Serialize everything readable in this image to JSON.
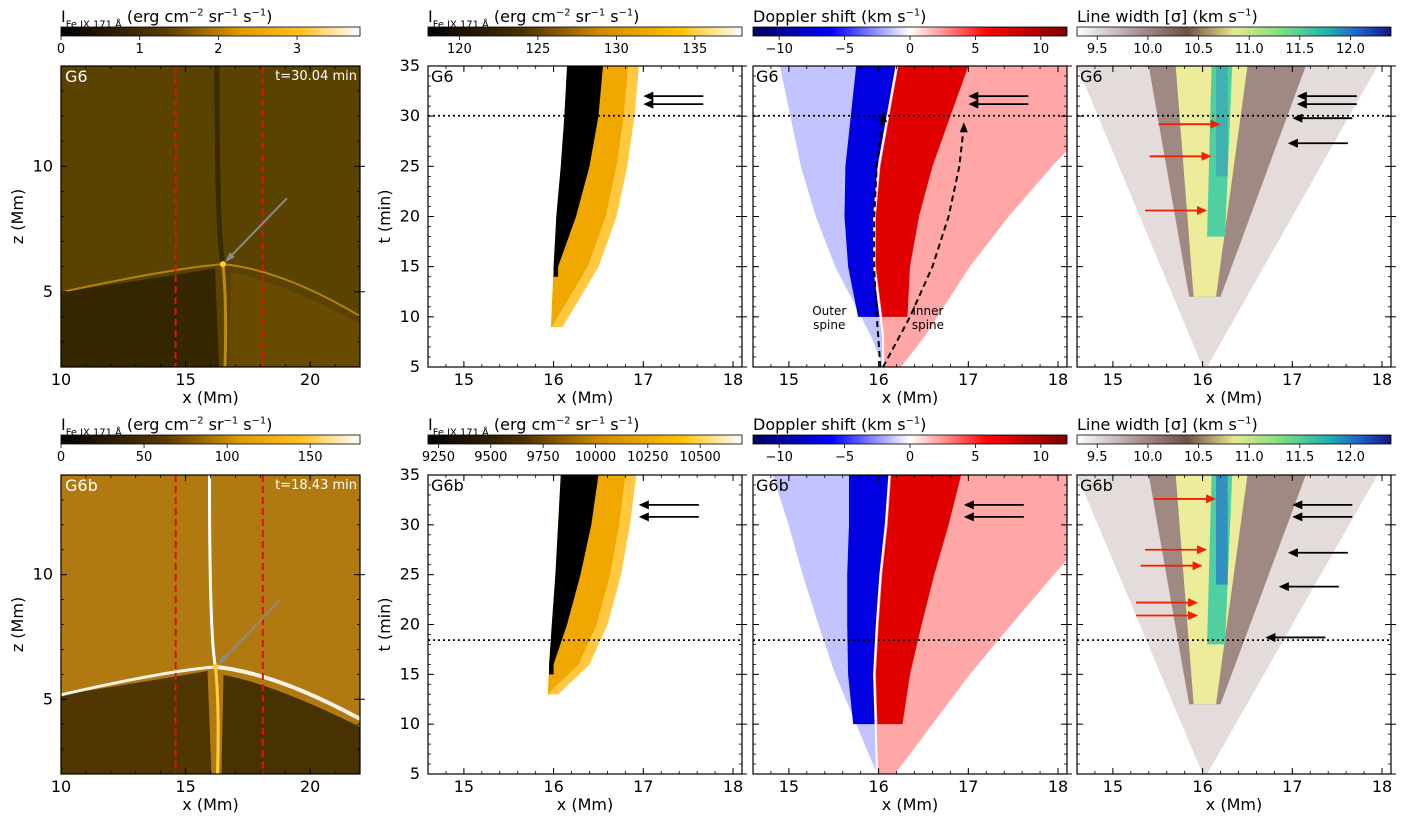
{
  "figure": {
    "rows": [
      {
        "sim_label": "G6",
        "time_label": "t=30.04 min",
        "t_current": 30.04,
        "panels": {
          "intensity_map": {
            "colorbar_label": "I<sub>Fe IX 171 Å</sub> (erg cm<sup>−2</sup> sr<sup>−1</sup> s<sup>−1</sup>)",
            "colorbar_ticks": [
              "0",
              "1",
              "2",
              "3"
            ],
            "colorbar_range": [
              0,
              3.8
            ]
          },
          "intensity_td": {
            "colorbar_label": "I<sub>Fe IX 171 Å</sub> (erg cm<sup>−2</sup> sr<sup>−1</sup> s<sup>−1</sup>)",
            "colorbar_ticks": [
              "120",
              "125",
              "130",
              "135"
            ],
            "colorbar_range": [
              118,
              138
            ]
          },
          "doppler_td": {
            "colorbar_label": "Doppler shift (km s<sup>−1</sup>)",
            "colorbar_ticks": [
              "−10",
              "−5",
              "0",
              "5",
              "10"
            ],
            "colorbar_range": [
              -12,
              12
            ],
            "annotations": [
              "Outer spine",
              "Inner spine"
            ]
          },
          "width_td": {
            "colorbar_label": "Line width [σ] (km s<sup>−1</sup>)",
            "colorbar_ticks": [
              "9.5",
              "10.0",
              "10.5",
              "11.0",
              "11.5",
              "12.0"
            ],
            "colorbar_range": [
              9.3,
              12.4
            ]
          }
        }
      },
      {
        "sim_label": "G6b",
        "time_label": "t=18.43 min",
        "t_current": 18.43,
        "panels": {
          "intensity_map": {
            "colorbar_label": "I<sub>Fe IX 171 Å</sub> (erg cm<sup>−2</sup> sr<sup>−1</sup> s<sup>−1</sup>)",
            "colorbar_ticks": [
              "0",
              "50",
              "100",
              "150"
            ],
            "colorbar_range": [
              0,
              180
            ]
          },
          "intensity_td": {
            "colorbar_label": "I<sub>Fe IX 171 Å</sub> (erg cm<sup>−2</sup> sr<sup>−1</sup> s<sup>−1</sup>)",
            "colorbar_ticks": [
              "9250",
              "9500",
              "9750",
              "10000",
              "10250",
              "10500"
            ],
            "colorbar_range": [
              9200,
              10700
            ]
          },
          "doppler_td": {
            "colorbar_label": "Doppler shift (km s<sup>−1</sup>)",
            "colorbar_ticks": [
              "−10",
              "−5",
              "0",
              "5",
              "10"
            ],
            "colorbar_range": [
              -12,
              12
            ],
            "annotations": []
          },
          "width_td": {
            "colorbar_label": "Line width [σ] (km s<sup>−1</sup>)",
            "colorbar_ticks": [
              "9.5",
              "10.0",
              "10.5",
              "11.0",
              "11.5",
              "12.0"
            ],
            "colorbar_range": [
              9.3,
              12.4
            ]
          }
        }
      }
    ],
    "map_axes": {
      "xlabel": "x (Mm)",
      "ylabel": "z (Mm)",
      "xlim": [
        10,
        22
      ],
      "ylim": [
        2,
        14
      ],
      "xticks": [
        "10",
        "15",
        "20"
      ],
      "yticks": [
        "5",
        "10"
      ],
      "slit_x": [
        14.6,
        18.1
      ]
    },
    "td_axes": {
      "xlabel": "x (Mm)",
      "ylabel": "t (min)",
      "xlim": [
        14.6,
        18.1
      ],
      "ylim": [
        5,
        35
      ],
      "xticks": [
        "15",
        "16",
        "17",
        "18"
      ],
      "yticks": [
        "5",
        "10",
        "15",
        "20",
        "25",
        "30",
        "35"
      ]
    }
  },
  "colors": {
    "slit": "#e01010",
    "red_arrow": "#ee2200",
    "pointer_arrow": "#8a8a8a",
    "map_background": "#5a4300",
    "map_bright": "#ffcc33"
  },
  "chart_data": [
    {
      "type": "heatmap",
      "title": "G6",
      "subtitle": "t=30.04 min",
      "quantity": "Fe IX 171 Å intensity map",
      "xlabel": "x (Mm)",
      "ylabel": "z (Mm)",
      "xlim": [
        10,
        22
      ],
      "ylim": [
        2,
        14
      ],
      "colorbar": {
        "range": [
          0,
          3.8
        ],
        "ticks": [
          0,
          1,
          2,
          3
        ]
      },
      "null_point": [
        16.5,
        6.1
      ],
      "slit_x": [
        14.6,
        18.1
      ]
    },
    {
      "type": "heatmap",
      "title": "G6",
      "quantity": "Fe IX 171 Å intensity time-distance",
      "xlabel": "x (Mm)",
      "ylabel": "t (min)",
      "xlim": [
        14.6,
        18.1
      ],
      "ylim": [
        5,
        35
      ],
      "colorbar": {
        "range": [
          118,
          138
        ],
        "ticks": [
          120,
          125,
          130,
          135
        ]
      },
      "dark_strand_edges": {
        "t": [
          15,
          20,
          25,
          30,
          35
        ],
        "left": [
          16.0,
          16.03,
          16.08,
          16.12,
          16.15
        ],
        "right": [
          16.05,
          16.25,
          16.4,
          16.5,
          16.55
        ]
      },
      "bright_edge": {
        "t": [
          9,
          15,
          20,
          25,
          30,
          35
        ],
        "x": [
          16.1,
          16.5,
          16.7,
          16.82,
          16.9,
          16.95
        ]
      },
      "black_arrows": [
        {
          "x": 17.0,
          "t": 32.0
        },
        {
          "x": 17.0,
          "t": 31.2
        }
      ],
      "t_marker": 30.04
    },
    {
      "type": "heatmap",
      "title": "G6",
      "quantity": "Doppler shift time-distance",
      "xlabel": "x (Mm)",
      "ylabel": "t (min)",
      "xlim": [
        14.6,
        18.1
      ],
      "ylim": [
        5,
        35
      ],
      "colorbar": {
        "range": [
          -12,
          12
        ],
        "ticks": [
          -10,
          -5,
          0,
          5,
          10
        ]
      },
      "blue_red_boundary": {
        "t": [
          8,
          15,
          20,
          25,
          30,
          35
        ],
        "x": [
          16.05,
          15.95,
          15.95,
          16.0,
          16.1,
          16.2
        ]
      },
      "outer_spine": {
        "t": [
          5,
          10,
          15,
          20,
          25,
          30
        ],
        "x": [
          16.02,
          15.98,
          15.95,
          15.95,
          15.98,
          16.05
        ]
      },
      "inner_spine": {
        "t": [
          5,
          10,
          15,
          20,
          25,
          29
        ],
        "x": [
          16.05,
          16.35,
          16.6,
          16.78,
          16.9,
          16.95
        ]
      },
      "black_arrows": [
        {
          "x": 17.0,
          "t": 32.0
        },
        {
          "x": 17.0,
          "t": 31.2
        }
      ],
      "t_marker": 30.04
    },
    {
      "type": "heatmap",
      "title": "G6",
      "quantity": "Line width time-distance",
      "xlabel": "x (Mm)",
      "ylabel": "t (min)",
      "xlim": [
        14.6,
        18.1
      ],
      "ylim": [
        5,
        35
      ],
      "colorbar": {
        "range": [
          9.3,
          12.4
        ],
        "ticks": [
          9.5,
          10.0,
          10.5,
          11.0,
          11.5,
          12.0
        ]
      },
      "red_arrows": [
        {
          "x": 16.2,
          "t": 29.2
        },
        {
          "x": 16.1,
          "t": 26.0
        },
        {
          "x": 16.05,
          "t": 20.6
        }
      ],
      "black_arrows": [
        {
          "x": 17.05,
          "t": 32.0
        },
        {
          "x": 17.05,
          "t": 31.2
        },
        {
          "x": 17.0,
          "t": 29.8
        },
        {
          "x": 16.95,
          "t": 27.3
        }
      ],
      "t_marker": 30.04
    },
    {
      "type": "heatmap",
      "title": "G6b",
      "subtitle": "t=18.43 min",
      "quantity": "Fe IX 171 Å intensity map",
      "xlabel": "x (Mm)",
      "ylabel": "z (Mm)",
      "xlim": [
        10,
        22
      ],
      "ylim": [
        2,
        14
      ],
      "colorbar": {
        "range": [
          0,
          180
        ],
        "ticks": [
          0,
          50,
          100,
          150
        ]
      },
      "null_point": [
        16.2,
        6.3
      ],
      "slit_x": [
        14.6,
        18.1
      ]
    },
    {
      "type": "heatmap",
      "title": "G6b",
      "quantity": "Fe IX 171 Å intensity time-distance",
      "xlabel": "x (Mm)",
      "ylabel": "t (min)",
      "xlim": [
        14.6,
        18.1
      ],
      "ylim": [
        5,
        35
      ],
      "colorbar": {
        "range": [
          9200,
          10700
        ],
        "ticks": [
          9250,
          9500,
          9750,
          10000,
          10250,
          10500
        ]
      },
      "dark_strand_edges": {
        "t": [
          16,
          20,
          25,
          30,
          35
        ],
        "left": [
          15.95,
          15.98,
          16.02,
          16.05,
          16.08
        ],
        "right": [
          16.0,
          16.15,
          16.3,
          16.42,
          16.5
        ]
      },
      "bright_edge": {
        "t": [
          13,
          16,
          20,
          25,
          30,
          35
        ],
        "x": [
          16.05,
          16.4,
          16.6,
          16.75,
          16.85,
          16.92
        ]
      },
      "black_arrows": [
        {
          "x": 16.95,
          "t": 32.0
        },
        {
          "x": 16.95,
          "t": 30.8
        }
      ],
      "t_marker": 18.43
    },
    {
      "type": "heatmap",
      "title": "G6b",
      "quantity": "Doppler shift time-distance",
      "xlabel": "x (Mm)",
      "ylabel": "t (min)",
      "xlim": [
        14.6,
        18.1
      ],
      "ylim": [
        5,
        35
      ],
      "colorbar": {
        "range": [
          -12,
          12
        ],
        "ticks": [
          -10,
          -5,
          0,
          5,
          10
        ]
      },
      "blue_red_boundary": {
        "t": [
          6,
          15,
          20,
          25,
          30,
          35
        ],
        "x": [
          15.98,
          15.95,
          15.98,
          16.02,
          16.08,
          16.12
        ]
      },
      "black_arrows": [
        {
          "x": 16.95,
          "t": 32.0
        },
        {
          "x": 16.95,
          "t": 30.8
        }
      ],
      "t_marker": 18.43
    },
    {
      "type": "heatmap",
      "title": "G6b",
      "quantity": "Line width time-distance",
      "xlabel": "x (Mm)",
      "ylabel": "t (min)",
      "xlim": [
        14.6,
        18.1
      ],
      "ylim": [
        5,
        35
      ],
      "colorbar": {
        "range": [
          9.3,
          12.4
        ],
        "ticks": [
          9.5,
          10.0,
          10.5,
          11.0,
          11.5,
          12.0
        ]
      },
      "red_arrows": [
        {
          "x": 16.15,
          "t": 32.6
        },
        {
          "x": 16.05,
          "t": 27.5
        },
        {
          "x": 16.0,
          "t": 25.9
        },
        {
          "x": 15.95,
          "t": 22.2
        },
        {
          "x": 15.95,
          "t": 20.9
        }
      ],
      "black_arrows": [
        {
          "x": 17.0,
          "t": 32.0
        },
        {
          "x": 17.0,
          "t": 30.8
        },
        {
          "x": 16.95,
          "t": 27.2
        },
        {
          "x": 16.85,
          "t": 23.8
        },
        {
          "x": 16.7,
          "t": 18.7
        }
      ],
      "t_marker": 18.43
    }
  ]
}
